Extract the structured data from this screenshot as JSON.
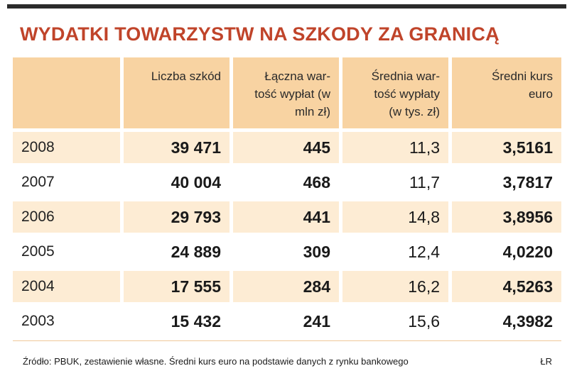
{
  "title": "WYDATKI TOWARZYSTW NA SZKODY ZA GRANICĄ",
  "columns": [
    "",
    "Liczba szkód",
    "Łączna war-\ntość wypłat (w\nmln zł)",
    "Średnia war-\ntość wypłaty\n(w tys. zł)",
    "Średni kurs\neuro"
  ],
  "rows": [
    [
      "2008",
      "39 471",
      "445",
      "11,3",
      "3,5161"
    ],
    [
      "2007",
      "40 004",
      "468",
      "11,7",
      "3,7817"
    ],
    [
      "2006",
      "29 793",
      "441",
      "14,8",
      "3,8956"
    ],
    [
      "2005",
      "24 889",
      "309",
      "12,4",
      "4,0220"
    ],
    [
      "2004",
      "17 555",
      "284",
      "16,2",
      "4,5263"
    ],
    [
      "2003",
      "15 432",
      "241",
      "15,6",
      "4,3982"
    ]
  ],
  "footer": "Źródło: PBUK, zestawienie własne. Średni kurs euro na podstawie danych z rynku bankowego",
  "author": "ŁR",
  "colors": {
    "title": "#c0442a",
    "header_bg": "#f8d3a2",
    "row_shade": "#fdecd4",
    "top_bar": "#2b2b2b"
  }
}
